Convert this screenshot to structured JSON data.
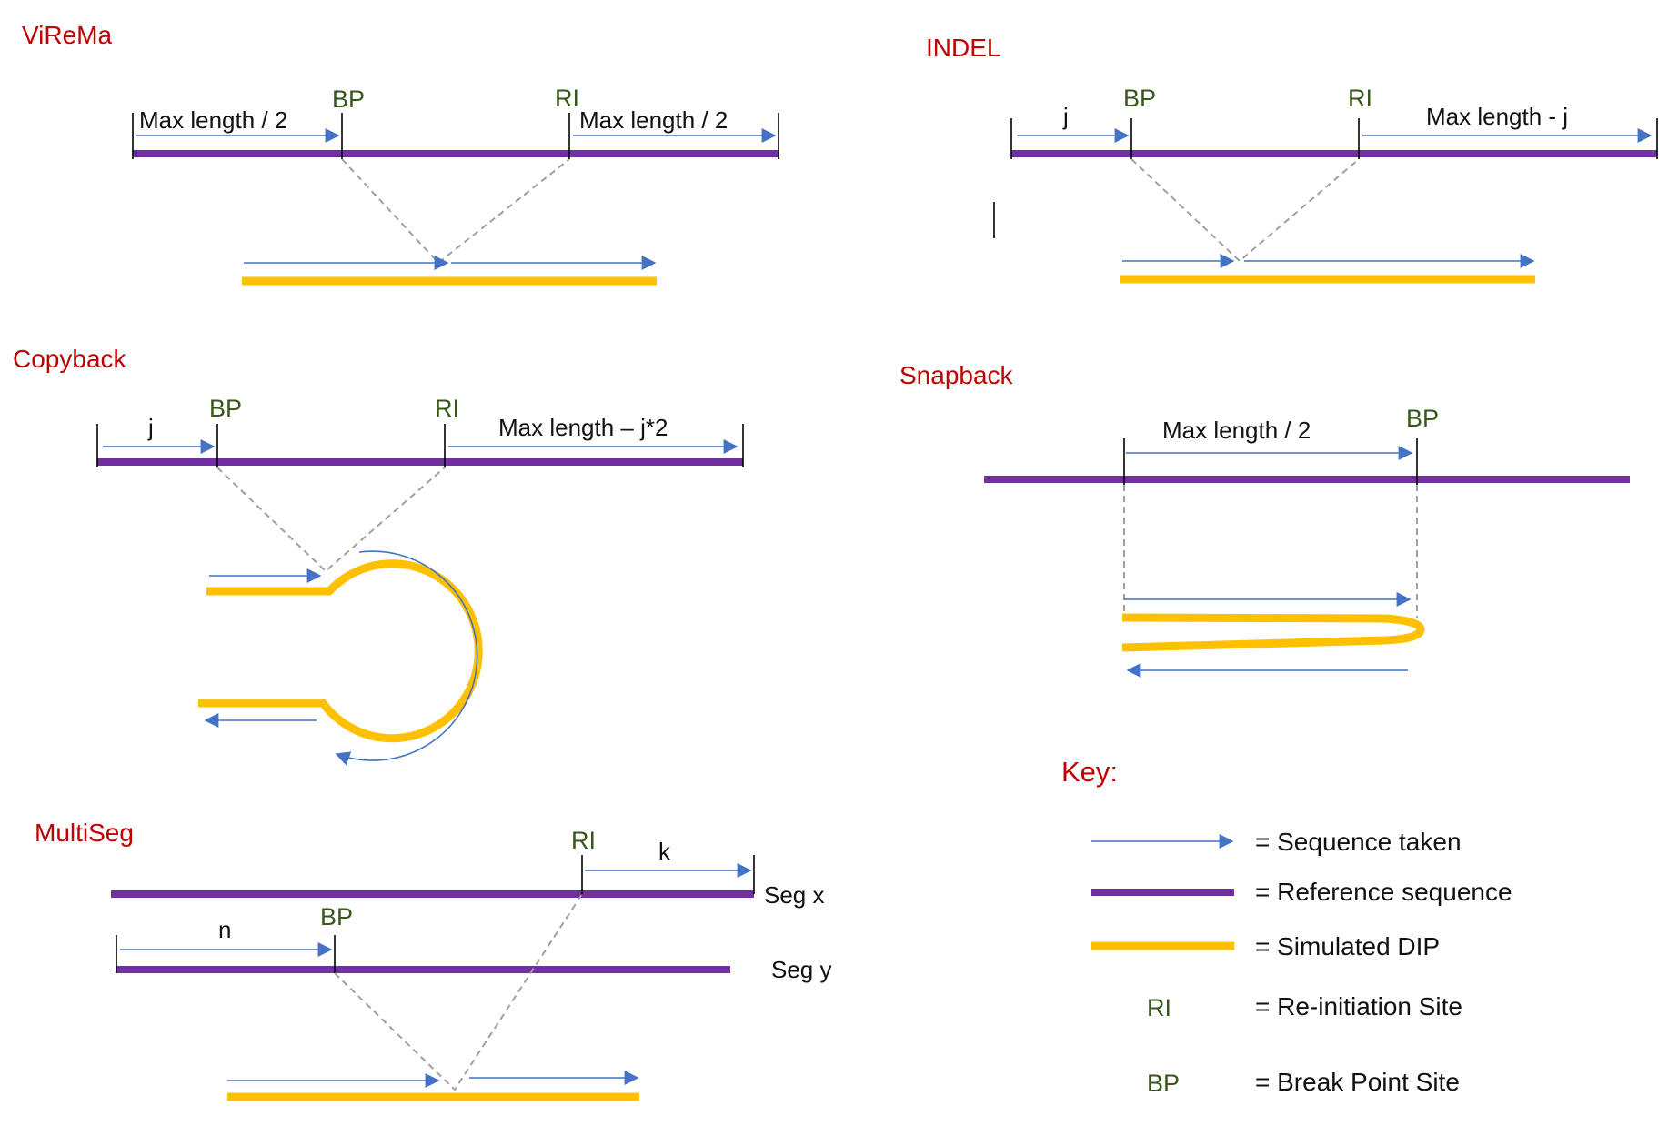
{
  "panels": {
    "virema": {
      "title": "ViReMa",
      "bp": "BP",
      "ri": "RI",
      "left_label": "Max length / 2",
      "right_label": "Max length / 2"
    },
    "indel": {
      "title": "INDEL",
      "bp": "BP",
      "ri": "RI",
      "left_label": "j",
      "right_label": "Max length - j"
    },
    "copyback": {
      "title": "Copyback",
      "bp": "BP",
      "ri": "RI",
      "left_label": "j",
      "right_label": "Max length – j*2"
    },
    "snapback": {
      "title": "Snapback",
      "bp": "BP",
      "label": "Max length / 2"
    },
    "multiseg": {
      "title": "MultiSeg",
      "bp": "BP",
      "ri": "RI",
      "k_label": "k",
      "n_label": "n",
      "seg_x": "Seg x",
      "seg_y": "Seg y"
    }
  },
  "key": {
    "title": "Key:",
    "items": [
      {
        "symbol": "",
        "symbol_type": "arrow",
        "text": "= Sequence taken"
      },
      {
        "symbol": "",
        "symbol_type": "reference-line",
        "text": "= Reference sequence"
      },
      {
        "symbol": "",
        "symbol_type": "dip-line",
        "text": "= Simulated DIP"
      },
      {
        "symbol": "RI",
        "symbol_type": "text",
        "text": "= Re-initiation Site"
      },
      {
        "symbol": "BP",
        "symbol_type": "text",
        "text": "= Break Point Site"
      }
    ]
  },
  "colors": {
    "title": "#c00000",
    "site_label": "#38571a",
    "reference": "#7030a0",
    "dip": "#ffc000",
    "sequence_arrow": "#4472c4",
    "dashed_guide": "#a0a0a0"
  }
}
